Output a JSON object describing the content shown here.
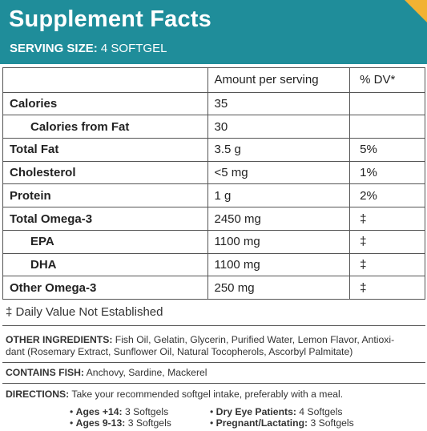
{
  "header": {
    "title": "Supplement Facts",
    "serving_label": "SERVING SIZE:",
    "serving_value": "4 SOFTGEL"
  },
  "table": {
    "col_amount": "Amount per serving",
    "col_dv": "% DV*",
    "rows": [
      {
        "name": "Calories",
        "amount": "35",
        "dv": ""
      },
      {
        "name": "Calories from Fat",
        "amount": "30",
        "dv": ""
      },
      {
        "name": "Total Fat",
        "amount": "3.5 g",
        "dv": "5%"
      },
      {
        "name": "Cholesterol",
        "amount": "<5 mg",
        "dv": "1%"
      },
      {
        "name": "Protein",
        "amount": "1 g",
        "dv": "2%"
      },
      {
        "name": "Total Omega-3",
        "amount": "2450 mg",
        "dv": "‡"
      },
      {
        "name": "EPA",
        "amount": "1100 mg",
        "dv": "‡"
      },
      {
        "name": "DHA",
        "amount": "1100 mg",
        "dv": "‡"
      },
      {
        "name": "Other Omega-3",
        "amount": "250 mg",
        "dv": "‡"
      }
    ]
  },
  "footnote": "‡ Daily Value Not Established",
  "ingredients": {
    "label": "OTHER INGREDIENTS:",
    "line1": "Fish Oil, Gelatin, Glycerin, Purified Water, Lemon Flavor, Antioxi-",
    "line2": "dant (Rosemary Extract, Sunflower Oil, Natural Tocopherols, Ascorbyl Palmitate)"
  },
  "contains": {
    "label": "CONTAINS FISH:",
    "text": "Anchovy, Sardine, Mackerel"
  },
  "directions": {
    "label": "DIRECTIONS:",
    "text": "Take your recommended softgel intake, preferably with a meal.",
    "doses": [
      {
        "label": "Ages +14:",
        "value": "3 Softgels"
      },
      {
        "label": "Ages 9-13:",
        "value": "3 Softgels"
      },
      {
        "label": "Dry Eye Patients:",
        "value": "4 Softgels"
      },
      {
        "label": "Pregnant/Lactating:",
        "value": "3 Softgels"
      }
    ]
  },
  "colors": {
    "header_bg": "#1f8d9a",
    "corner_accent": "#f2b233"
  }
}
